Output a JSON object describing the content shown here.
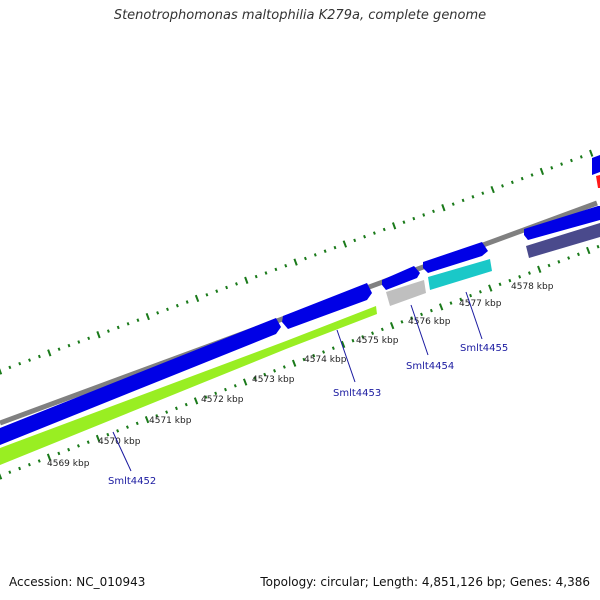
{
  "title": "Stenotrophomonas maltophilia K279a, complete genome",
  "footer": {
    "accession": "Accession: NC_010943",
    "summary": "Topology: circular; Length: 4,851,126 bp; Genes: 4,386"
  },
  "colors": {
    "backbone": "#808080",
    "cds": "#0000e6",
    "gc_lime": "#99ee22",
    "gray_feature": "#bfbfbf",
    "cyan_feature": "#1ac8c8",
    "purple_feature": "#4a4a8c",
    "red_feature": "#ff1a1a",
    "tick_green": "#1a7a1a",
    "label_blue": "#1a1aa0"
  },
  "kbp_ticks": [
    "4569 kbp",
    "4570 kbp",
    "4571 kbp",
    "4572 kbp",
    "4573 kbp",
    "4574 kbp",
    "4575 kbp",
    "4576 kbp",
    "4577 kbp",
    "4578 kbp"
  ],
  "gene_labels": [
    "Smlt4452",
    "Smlt4453",
    "Smlt4454",
    "Smlt4455"
  ]
}
